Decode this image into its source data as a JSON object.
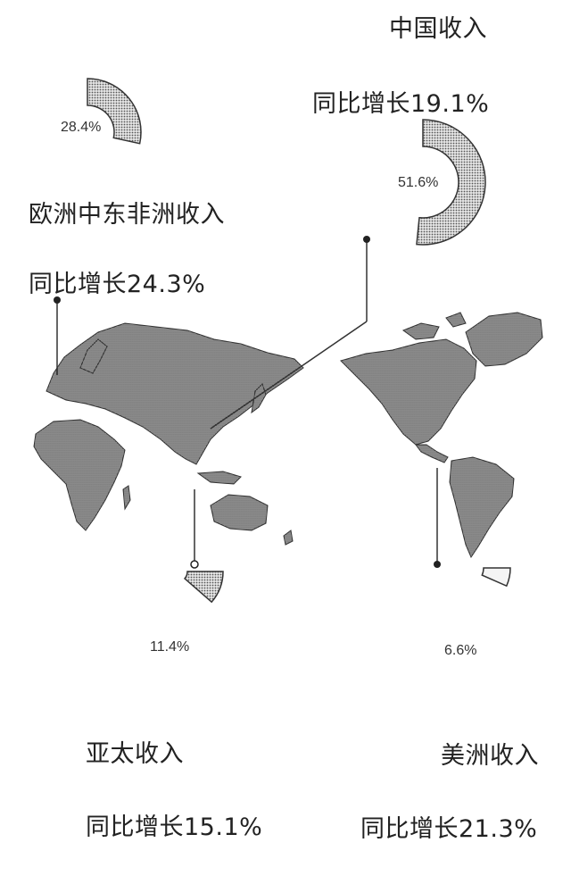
{
  "regions": {
    "china": {
      "name": "中国收入",
      "growth": "同比增长19.1%",
      "share_label": "51.6%",
      "share": 51.6
    },
    "emea": {
      "name": "欧洲中东非洲收入",
      "growth": "同比增长24.3%",
      "share_label": "28.4%",
      "share": 28.4
    },
    "apac": {
      "name": "亚太收入",
      "growth": "同比增长15.1%",
      "share_label": "11.4%",
      "share": 11.4
    },
    "americas": {
      "name": "美洲收入",
      "growth": "同比增长21.3%",
      "share_label": "6.6%",
      "share": 6.6
    }
  },
  "colors": {
    "ink": "#222222",
    "fill": "#dcdcdc",
    "land": "#b9b9b9"
  }
}
